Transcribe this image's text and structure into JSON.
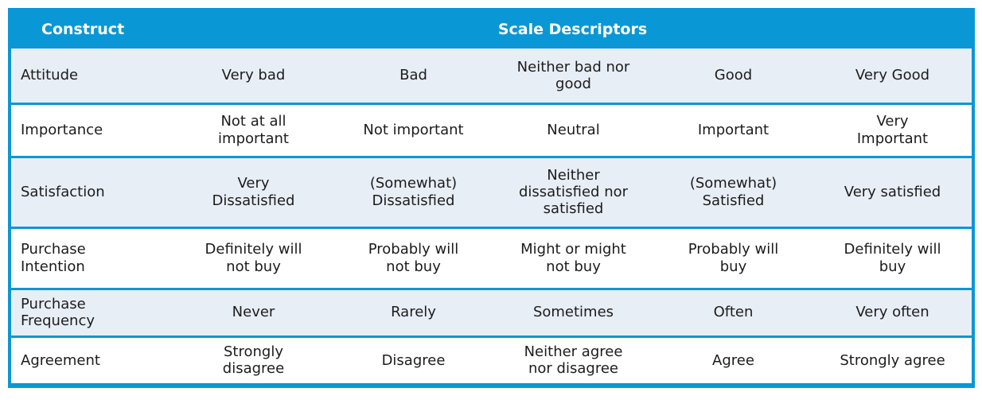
{
  "table": {
    "header": {
      "construct_label": "Construct",
      "scale_descriptors_label": "Scale Descriptors"
    },
    "rows": [
      {
        "construct": "Attitude",
        "descriptors": [
          "Very bad",
          "Bad",
          "Neither bad nor\ngood",
          "Good",
          "Very Good"
        ]
      },
      {
        "construct": "Importance",
        "descriptors": [
          "Not at all\nimportant",
          "Not important",
          "Neutral",
          "Important",
          "Very\nImportant"
        ]
      },
      {
        "construct": "Satisfaction",
        "descriptors": [
          "Very\nDissatisfied",
          "(Somewhat)\nDissatisfied",
          "Neither\ndissatisfied nor\nsatisfied",
          "(Somewhat)\nSatisfied",
          "Very satisfied"
        ]
      },
      {
        "construct": "Purchase\nIntention",
        "descriptors": [
          "Definitely will\nnot buy",
          "Probably will\nnot buy",
          "Might or might\nnot buy",
          "Probably will\nbuy",
          "Definitely will\nbuy"
        ]
      },
      {
        "construct": "Purchase\nFrequency",
        "descriptors": [
          "Never",
          "Rarely",
          "Sometimes",
          "Often",
          "Very often"
        ]
      },
      {
        "construct": "Agreement",
        "descriptors": [
          "Strongly\ndisagree",
          "Disagree",
          "Neither agree\nnor disagree",
          "Agree",
          "Strongly agree"
        ]
      }
    ],
    "colors": {
      "header_bg": "#0a97d5",
      "header_text": "#ffffff",
      "border": "#0a97d5",
      "row_alt_bg": "#e8eef6",
      "row_bg": "#ffffff",
      "cell_text": "#1c1c1c"
    }
  }
}
